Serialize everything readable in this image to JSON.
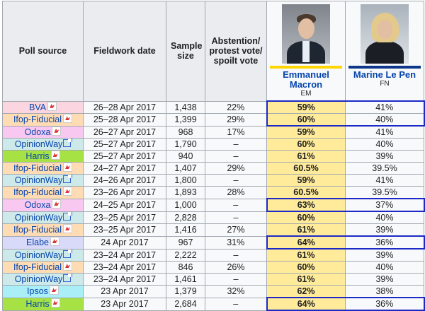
{
  "headers": {
    "source": "Poll source",
    "date": "Fieldwork date",
    "sample": "Sample size",
    "abstention": "Abstention/ protest vote/ spoilt vote"
  },
  "candidates": [
    {
      "name": "Emmanuel Macron",
      "party": "EM",
      "color": "#ffd600"
    },
    {
      "name": "Marine Le Pen",
      "party": "FN",
      "color": "#0d378a"
    }
  ],
  "colors": {
    "BVA": "#fbd6e0",
    "Ifop-Fiducial": "#ffdcb4",
    "Odoxa": "#f8c8f0",
    "OpinionWay": "#cde9e9",
    "Harris": "#a6e244",
    "Elabe": "#d9d9f9",
    "Ipsos": "#aaeef8",
    "winner": "#ffeb99",
    "highlight_border": "#1d29c4"
  },
  "rows": [
    {
      "source": "BVA",
      "icon": "pdf-icon",
      "date": "26–28 Apr 2017",
      "sample": "1,438",
      "abstention": "22%",
      "macron": "59%",
      "lepen": "41%",
      "box": "top"
    },
    {
      "source": "Ifop-Fiducial",
      "icon": "pdf-icon",
      "date": "25–28 Apr 2017",
      "sample": "1,399",
      "abstention": "29%",
      "macron": "60%",
      "lepen": "40%",
      "box": "bottom"
    },
    {
      "source": "Odoxa",
      "icon": "pdf-icon",
      "date": "26–27 Apr 2017",
      "sample": "968",
      "abstention": "17%",
      "macron": "59%",
      "lepen": "41%",
      "box": ""
    },
    {
      "source": "OpinionWay",
      "icon": "external-link-icon",
      "date": "25–27 Apr 2017",
      "sample": "1,790",
      "abstention": "–",
      "macron": "60%",
      "lepen": "40%",
      "box": ""
    },
    {
      "source": "Harris",
      "icon": "pdf-icon",
      "date": "25–27 Apr 2017",
      "sample": "940",
      "abstention": "–",
      "macron": "61%",
      "lepen": "39%",
      "box": ""
    },
    {
      "source": "Ifop-Fiducial",
      "icon": "pdf-icon",
      "date": "24–27 Apr 2017",
      "sample": "1,407",
      "abstention": "29%",
      "macron": "60.5%",
      "lepen": "39.5%",
      "box": ""
    },
    {
      "source": "OpinionWay",
      "icon": "external-link-icon",
      "date": "24–26 Apr 2017",
      "sample": "1,800",
      "abstention": "–",
      "macron": "59%",
      "lepen": "41%",
      "box": ""
    },
    {
      "source": "Ifop-Fiducial",
      "icon": "pdf-icon",
      "date": "23–26 Apr 2017",
      "sample": "1,893",
      "abstention": "28%",
      "macron": "60.5%",
      "lepen": "39.5%",
      "box": ""
    },
    {
      "source": "Odoxa",
      "icon": "pdf-icon",
      "date": "24–25 Apr 2017",
      "sample": "1,000",
      "abstention": "–",
      "macron": "63%",
      "lepen": "37%",
      "box": "single"
    },
    {
      "source": "OpinionWay",
      "icon": "external-link-icon",
      "date": "23–25 Apr 2017",
      "sample": "2,828",
      "abstention": "–",
      "macron": "60%",
      "lepen": "40%",
      "box": ""
    },
    {
      "source": "Ifop-Fiducial",
      "icon": "pdf-icon",
      "date": "23–25 Apr 2017",
      "sample": "1,416",
      "abstention": "27%",
      "macron": "61%",
      "lepen": "39%",
      "box": ""
    },
    {
      "source": "Elabe",
      "icon": "pdf-icon",
      "date": "24 Apr 2017",
      "sample": "967",
      "abstention": "31%",
      "macron": "64%",
      "lepen": "36%",
      "box": "single"
    },
    {
      "source": "OpinionWay",
      "icon": "external-link-icon",
      "date": "23–24 Apr 2017",
      "sample": "2,222",
      "abstention": "–",
      "macron": "61%",
      "lepen": "39%",
      "box": ""
    },
    {
      "source": "Ifop-Fiducial",
      "icon": "pdf-icon",
      "date": "23–24 Apr 2017",
      "sample": "846",
      "abstention": "26%",
      "macron": "60%",
      "lepen": "40%",
      "box": ""
    },
    {
      "source": "OpinionWay",
      "icon": "external-link-icon",
      "date": "23–24 Apr 2017",
      "sample": "1,461",
      "abstention": "–",
      "macron": "61%",
      "lepen": "39%",
      "box": ""
    },
    {
      "source": "Ipsos",
      "icon": "pdf-icon",
      "date": "23 Apr 2017",
      "sample": "1,379",
      "abstention": "32%",
      "macron": "62%",
      "lepen": "38%",
      "box": ""
    },
    {
      "source": "Harris",
      "icon": "pdf-icon",
      "date": "23 Apr 2017",
      "sample": "2,684",
      "abstention": "–",
      "macron": "64%",
      "lepen": "36%",
      "box": "single"
    }
  ]
}
